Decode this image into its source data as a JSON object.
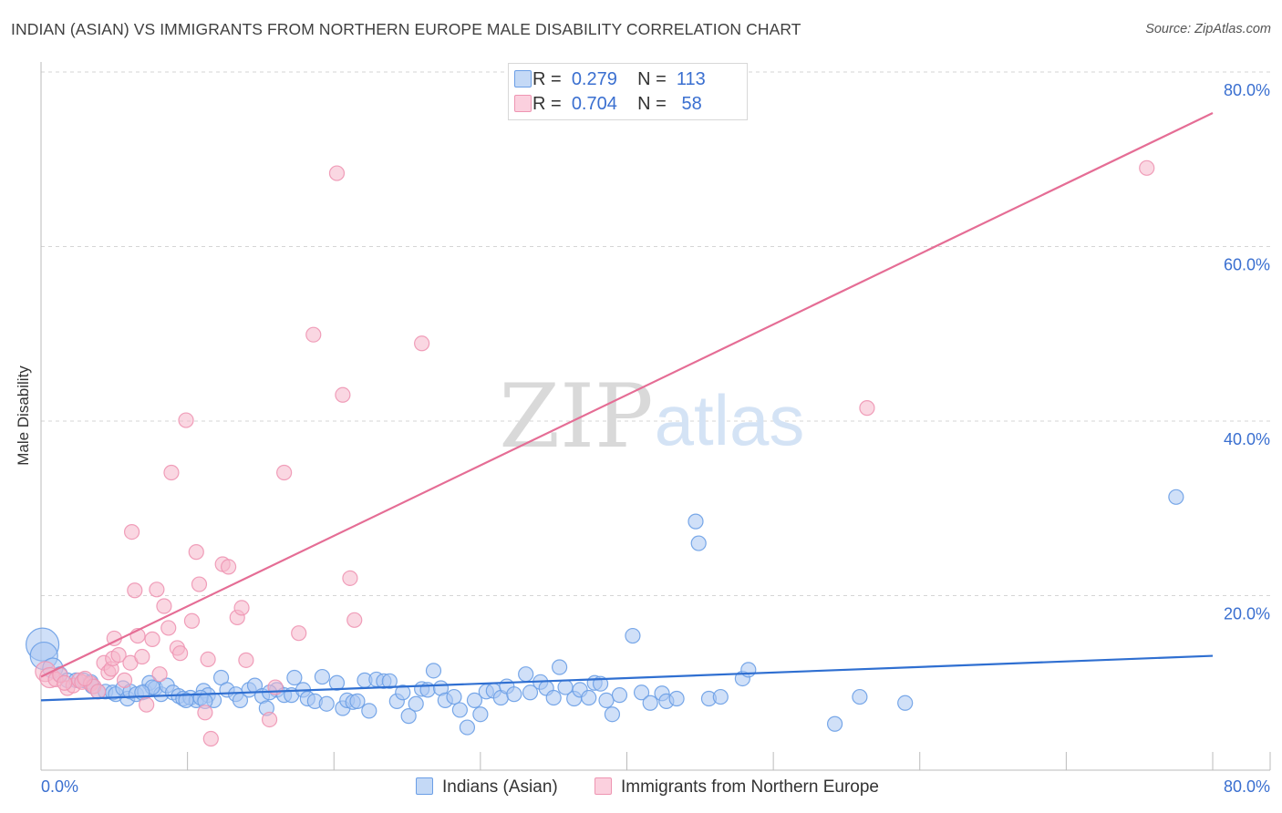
{
  "header": {
    "title": "INDIAN (ASIAN) VS IMMIGRANTS FROM NORTHERN EUROPE MALE DISABILITY CORRELATION CHART",
    "source": "Source: ZipAtlas.com"
  },
  "watermark": {
    "zip": "ZIP",
    "atlas": "atlas"
  },
  "legend_top": [
    {
      "r_label": "R =",
      "r_value": "0.279",
      "n_label": "N =",
      "n_value": "113",
      "color": "#a9c7f2"
    },
    {
      "r_label": "R =",
      "r_value": "0.704",
      "n_label": "N =",
      "n_value": "58",
      "color": "#f6b6ca"
    }
  ],
  "legend_bottom": [
    {
      "label": "Indians (Asian)",
      "color": "#a9c7f2"
    },
    {
      "label": "Immigrants from Northern Europe",
      "color": "#f6b6ca"
    }
  ],
  "chart_data": {
    "type": "scatter",
    "title": "INDIAN (ASIAN) VS IMMIGRANTS FROM NORTHERN EUROPE MALE DISABILITY CORRELATION CHART",
    "xlabel": "",
    "ylabel": "Male Disability",
    "xlim": [
      0,
      80
    ],
    "ylim": [
      0,
      80
    ],
    "x_tick_labels": [
      "0.0%",
      "80.0%"
    ],
    "y_ticks": [
      20,
      40,
      60,
      80
    ],
    "y_tick_labels": [
      "20.0%",
      "40.0%",
      "60.0%",
      "80.0%"
    ],
    "grid": true,
    "series": [
      {
        "name": "Indians (Asian)",
        "color": "#6a9ee6",
        "fill": "#a9c7f2",
        "trend": {
          "x": [
            0,
            80
          ],
          "y": [
            8.0,
            13.1
          ],
          "color": "#2f6fd1"
        },
        "points": [
          [
            0.1,
            14.4
          ],
          [
            0.2,
            13.1
          ],
          [
            0.8,
            11.7
          ],
          [
            1.3,
            11.0
          ],
          [
            1.8,
            10.3
          ],
          [
            2.4,
            10.3
          ],
          [
            2.9,
            10.3
          ],
          [
            3.4,
            10.1
          ],
          [
            3.5,
            9.6
          ],
          [
            3.9,
            9.0
          ],
          [
            4.4,
            9.0
          ],
          [
            4.9,
            8.9
          ],
          [
            5.1,
            8.7
          ],
          [
            5.6,
            9.4
          ],
          [
            5.9,
            8.2
          ],
          [
            6.1,
            9.0
          ],
          [
            6.5,
            8.7
          ],
          [
            7.1,
            9.0
          ],
          [
            7.4,
            10.0
          ],
          [
            7.8,
            9.4
          ],
          [
            8.2,
            8.7
          ],
          [
            8.6,
            9.7
          ],
          [
            9.0,
            8.9
          ],
          [
            9.4,
            8.5
          ],
          [
            9.7,
            8.2
          ],
          [
            10.2,
            8.3
          ],
          [
            10.6,
            8.0
          ],
          [
            11.1,
            9.1
          ],
          [
            11.4,
            8.6
          ],
          [
            11.8,
            8.0
          ],
          [
            12.3,
            10.6
          ],
          [
            12.7,
            9.2
          ],
          [
            13.3,
            8.7
          ],
          [
            13.6,
            8.0
          ],
          [
            14.2,
            9.2
          ],
          [
            14.6,
            9.7
          ],
          [
            15.1,
            8.5
          ],
          [
            15.4,
            7.1
          ],
          [
            16.1,
            9.2
          ],
          [
            16.6,
            8.6
          ],
          [
            17.1,
            8.6
          ],
          [
            17.3,
            10.6
          ],
          [
            17.9,
            9.2
          ],
          [
            18.2,
            8.2
          ],
          [
            18.7,
            7.9
          ],
          [
            19.2,
            10.7
          ],
          [
            19.5,
            7.6
          ],
          [
            20.2,
            10.0
          ],
          [
            20.6,
            7.1
          ],
          [
            20.9,
            8.0
          ],
          [
            21.3,
            7.8
          ],
          [
            21.6,
            7.9
          ],
          [
            22.1,
            10.3
          ],
          [
            22.4,
            6.8
          ],
          [
            22.9,
            10.4
          ],
          [
            23.4,
            10.2
          ],
          [
            23.8,
            10.2
          ],
          [
            24.3,
            7.9
          ],
          [
            24.7,
            8.9
          ],
          [
            25.1,
            6.2
          ],
          [
            25.6,
            7.6
          ],
          [
            26.0,
            9.3
          ],
          [
            26.4,
            9.2
          ],
          [
            26.8,
            11.4
          ],
          [
            27.3,
            9.4
          ],
          [
            27.6,
            8.0
          ],
          [
            28.2,
            8.4
          ],
          [
            28.6,
            6.9
          ],
          [
            29.1,
            4.9
          ],
          [
            29.6,
            8.0
          ],
          [
            30.0,
            6.4
          ],
          [
            30.4,
            9.0
          ],
          [
            30.9,
            9.1
          ],
          [
            31.4,
            8.3
          ],
          [
            31.8,
            9.6
          ],
          [
            32.3,
            8.7
          ],
          [
            33.1,
            11.0
          ],
          [
            33.4,
            8.9
          ],
          [
            34.1,
            10.1
          ],
          [
            34.5,
            9.4
          ],
          [
            35.0,
            8.3
          ],
          [
            35.4,
            11.8
          ],
          [
            35.8,
            9.5
          ],
          [
            36.4,
            8.2
          ],
          [
            36.8,
            9.2
          ],
          [
            37.4,
            8.3
          ],
          [
            37.8,
            10.0
          ],
          [
            38.2,
            9.9
          ],
          [
            38.6,
            8.0
          ],
          [
            39.0,
            6.4
          ],
          [
            39.5,
            8.6
          ],
          [
            40.4,
            15.4
          ],
          [
            41.0,
            8.9
          ],
          [
            41.6,
            7.7
          ],
          [
            42.4,
            8.8
          ],
          [
            42.7,
            7.9
          ],
          [
            43.4,
            8.2
          ],
          [
            44.7,
            28.5
          ],
          [
            44.9,
            26.0
          ],
          [
            45.6,
            8.2
          ],
          [
            46.4,
            8.4
          ],
          [
            47.9,
            10.5
          ],
          [
            48.3,
            11.5
          ],
          [
            54.2,
            5.3
          ],
          [
            55.9,
            8.4
          ],
          [
            59.0,
            7.7
          ],
          [
            77.5,
            31.3
          ],
          [
            7.6,
            9.5
          ],
          [
            6.9,
            8.9
          ],
          [
            9.9,
            8.0
          ],
          [
            10.9,
            8.3
          ],
          [
            11.2,
            7.9
          ],
          [
            15.6,
            8.9
          ]
        ],
        "sizes": [
          18,
          16,
          12
        ]
      },
      {
        "name": "Immigrants from Northern Europe",
        "color": "#ee95b2",
        "fill": "#f6b6ca",
        "trend": {
          "x": [
            0,
            80
          ],
          "y": [
            10.7,
            75.3
          ],
          "color": "#e56d95"
        },
        "points": [
          [
            0.3,
            11.3
          ],
          [
            0.6,
            10.6
          ],
          [
            1.0,
            10.4
          ],
          [
            1.3,
            10.9
          ],
          [
            1.8,
            9.4
          ],
          [
            2.2,
            9.7
          ],
          [
            2.6,
            10.3
          ],
          [
            2.8,
            10.1
          ],
          [
            3.4,
            9.9
          ],
          [
            3.6,
            9.6
          ],
          [
            3.9,
            9.0
          ],
          [
            4.3,
            12.3
          ],
          [
            4.6,
            11.2
          ],
          [
            4.8,
            11.6
          ],
          [
            4.9,
            12.8
          ],
          [
            5.0,
            15.1
          ],
          [
            5.3,
            13.2
          ],
          [
            5.7,
            10.3
          ],
          [
            6.1,
            12.3
          ],
          [
            6.2,
            27.3
          ],
          [
            6.4,
            20.6
          ],
          [
            6.6,
            15.4
          ],
          [
            6.9,
            13.0
          ],
          [
            7.2,
            7.5
          ],
          [
            7.6,
            15.0
          ],
          [
            7.9,
            20.7
          ],
          [
            8.1,
            11.0
          ],
          [
            8.4,
            18.8
          ],
          [
            8.7,
            16.3
          ],
          [
            8.9,
            34.1
          ],
          [
            9.3,
            14.0
          ],
          [
            9.5,
            13.4
          ],
          [
            9.9,
            40.1
          ],
          [
            10.3,
            17.1
          ],
          [
            10.6,
            25.0
          ],
          [
            10.8,
            21.3
          ],
          [
            11.2,
            6.6
          ],
          [
            11.4,
            12.7
          ],
          [
            11.6,
            3.6
          ],
          [
            12.4,
            23.6
          ],
          [
            12.8,
            23.3
          ],
          [
            13.4,
            17.5
          ],
          [
            13.7,
            18.6
          ],
          [
            14.0,
            12.6
          ],
          [
            15.6,
            5.8
          ],
          [
            16.0,
            9.5
          ],
          [
            16.6,
            34.1
          ],
          [
            17.6,
            15.7
          ],
          [
            18.6,
            49.9
          ],
          [
            20.2,
            68.4
          ],
          [
            20.6,
            43.0
          ],
          [
            21.1,
            22.0
          ],
          [
            21.4,
            17.2
          ],
          [
            26.0,
            48.9
          ],
          [
            56.4,
            41.5
          ],
          [
            75.5,
            69.0
          ],
          [
            3.0,
            10.5
          ],
          [
            1.6,
            10.0
          ]
        ]
      }
    ]
  }
}
